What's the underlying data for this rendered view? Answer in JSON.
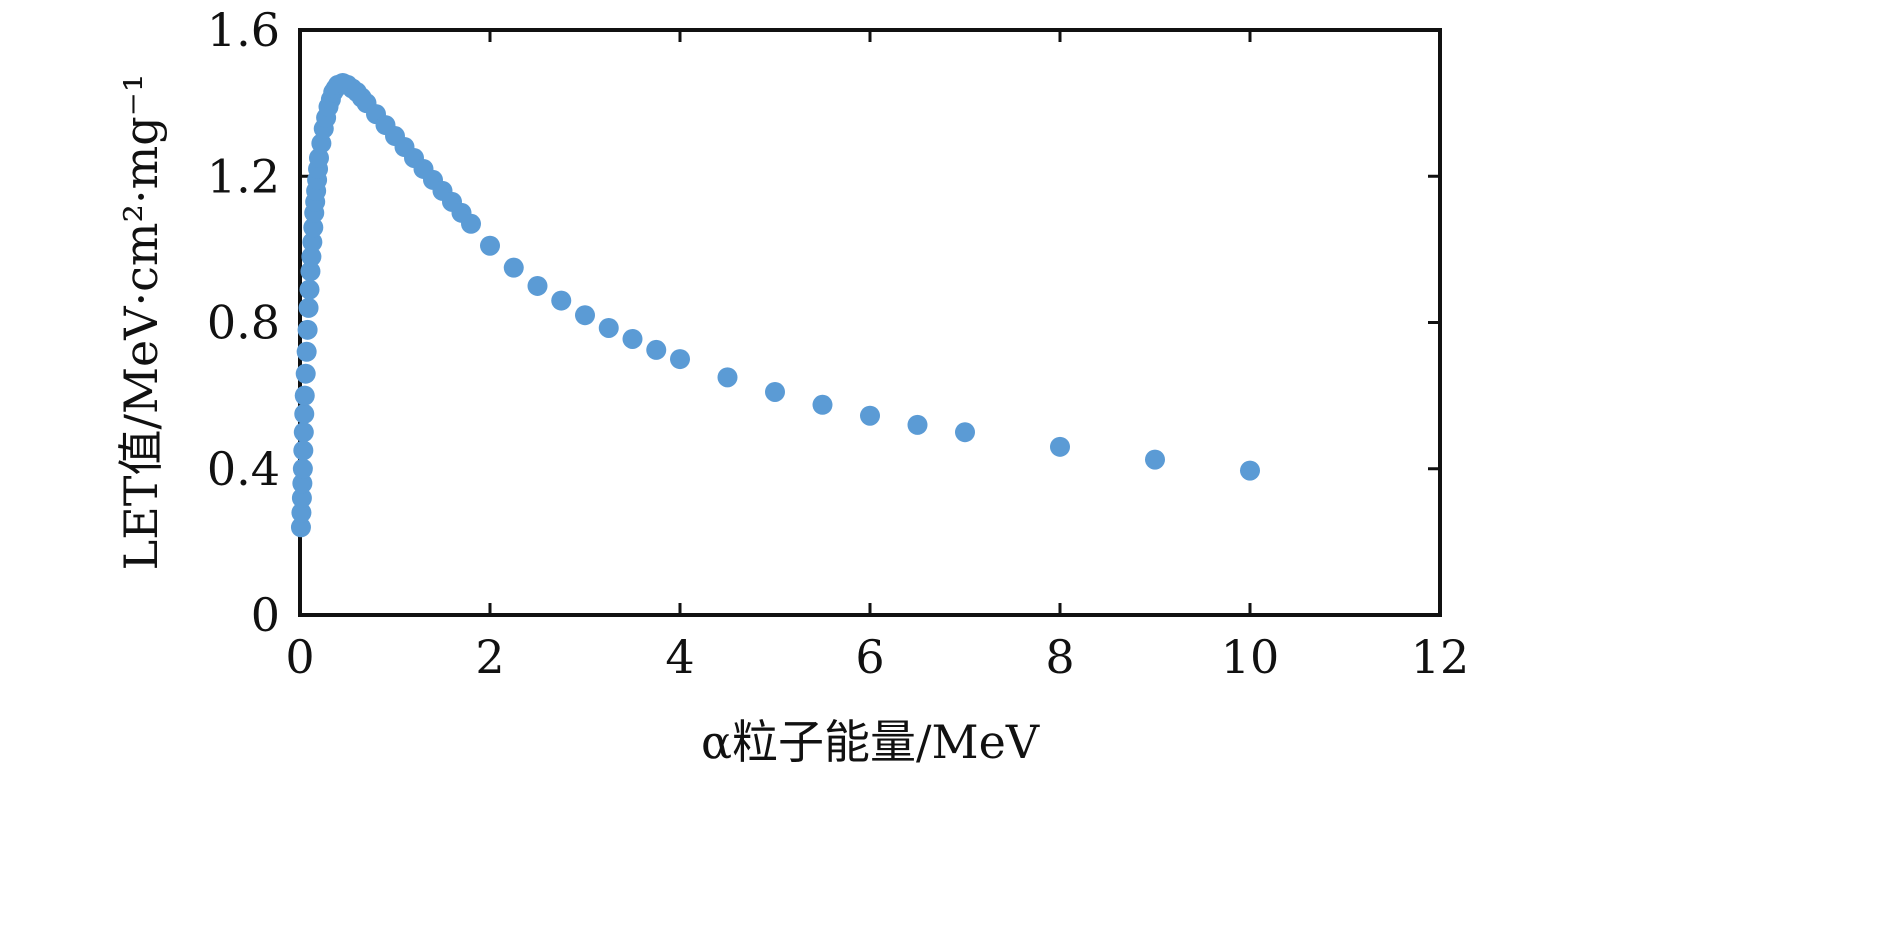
{
  "chart_data": {
    "type": "scatter",
    "title": "",
    "xlabel": "α粒子能量/MeV",
    "ylabel": "LET值/MeV·cm²·mg⁻¹",
    "xlim": [
      0,
      12
    ],
    "ylim": [
      0,
      1.6
    ],
    "xticks": [
      "0",
      "2",
      "4",
      "6",
      "8",
      "10",
      "12"
    ],
    "yticks": [
      "0",
      "0.4",
      "0.8",
      "1.2",
      "1.6"
    ],
    "grid": false,
    "legend": "none",
    "marker_color": "#5b9bd5",
    "series": [
      {
        "x": [
          0.01,
          0.015,
          0.02,
          0.025,
          0.03,
          0.035,
          0.04,
          0.045,
          0.05,
          0.06,
          0.07,
          0.08,
          0.09,
          0.1,
          0.11,
          0.12,
          0.13,
          0.14,
          0.15,
          0.16,
          0.17,
          0.18,
          0.19,
          0.2,
          0.225,
          0.25,
          0.275,
          0.3,
          0.325,
          0.35,
          0.375,
          0.4,
          0.45,
          0.5,
          0.55,
          0.6,
          0.65,
          0.7,
          0.8,
          0.9,
          1.0,
          1.1,
          1.2,
          1.3,
          1.4,
          1.5,
          1.6,
          1.7,
          1.8,
          2.0,
          2.25,
          2.5,
          2.75,
          3.0,
          3.25,
          3.5,
          3.75,
          4.0,
          4.5,
          5.0,
          5.5,
          6.0,
          6.5,
          7.0,
          8.0,
          9.0,
          10.0
        ],
        "values": [
          0.24,
          0.28,
          0.32,
          0.36,
          0.4,
          0.45,
          0.5,
          0.55,
          0.6,
          0.66,
          0.72,
          0.78,
          0.84,
          0.89,
          0.94,
          0.98,
          1.02,
          1.06,
          1.1,
          1.13,
          1.16,
          1.19,
          1.22,
          1.25,
          1.29,
          1.33,
          1.36,
          1.39,
          1.41,
          1.43,
          1.44,
          1.45,
          1.455,
          1.45,
          1.44,
          1.43,
          1.415,
          1.4,
          1.37,
          1.34,
          1.31,
          1.28,
          1.25,
          1.22,
          1.19,
          1.16,
          1.13,
          1.1,
          1.07,
          1.01,
          0.95,
          0.9,
          0.86,
          0.82,
          0.785,
          0.755,
          0.725,
          0.7,
          0.65,
          0.61,
          0.575,
          0.545,
          0.52,
          0.5,
          0.46,
          0.425,
          0.395
        ]
      }
    ]
  }
}
